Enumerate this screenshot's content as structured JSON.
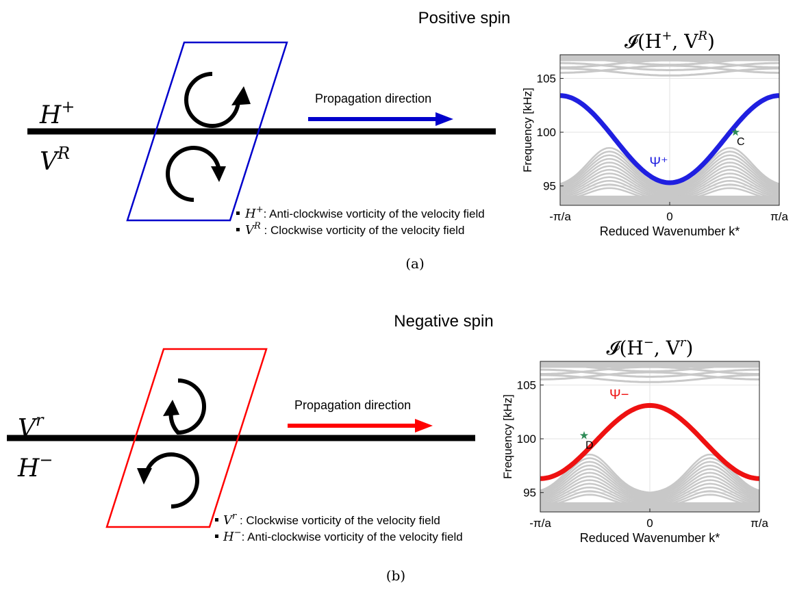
{
  "panel_a": {
    "title": "Positive spin",
    "label": "(a)",
    "top_line_label": {
      "base": "H",
      "sup": "+"
    },
    "bottom_line_label": {
      "base": "V",
      "sup": "R"
    },
    "arrow_label": "Propagation direction",
    "arrow_color": "#0000cc",
    "box_color": "#0000cc",
    "legend": [
      {
        "symbol": {
          "base": "H",
          "sup": "+"
        },
        "text": ": Anti-clockwise vorticity of the velocity field"
      },
      {
        "symbol": {
          "base": "V",
          "sup": "R"
        },
        "text": " : Clockwise vorticity of the velocity field"
      }
    ],
    "chart_data": {
      "type": "line",
      "title": {
        "func": "𝓘(H",
        "sup1": "+",
        "mid": ", V",
        "sup2": "R",
        "end": ")"
      },
      "xlabel": "Reduced Wavenumber k*",
      "ylabel": "Frequency [kHz]",
      "xticks": [
        "-π/a",
        "0",
        "π/a"
      ],
      "yticks": [
        95,
        100,
        105
      ],
      "ylim": [
        93.2,
        107.2
      ],
      "xlim": [
        -1,
        1
      ],
      "series": [
        {
          "name": "Ψ⁺",
          "color": "#1f1fe0",
          "min": 95.3,
          "max": 103.4,
          "shape": "valley"
        }
      ],
      "marker": {
        "label": "C",
        "x": 0.6,
        "y": 100.0,
        "color": "#2e8b57"
      },
      "bulk_color": "#c8c8c8"
    }
  },
  "panel_b": {
    "title": "Negative spin",
    "label": "(b)",
    "top_line_label": {
      "base": "V",
      "sup": "r"
    },
    "bottom_line_label": {
      "base": "H",
      "sup": "−"
    },
    "arrow_label": "Propagation direction",
    "arrow_color": "#ff0000",
    "box_color": "#ff0000",
    "legend": [
      {
        "symbol": {
          "base": "V",
          "sup": "r"
        },
        "text": " : Clockwise vorticity of the velocity field"
      },
      {
        "symbol": {
          "base": "H",
          "sup": "−"
        },
        "text": ": Anti-clockwise vorticity of the velocity field"
      }
    ],
    "chart_data": {
      "type": "line",
      "title": {
        "func": "𝓘(H",
        "sup1": "−",
        "mid": ", V",
        "sup2": "r",
        "end": ")"
      },
      "xlabel": "Reduced Wavenumber k*",
      "ylabel": "Frequency [kHz]",
      "xticks": [
        "-π/a",
        "0",
        "π/a"
      ],
      "yticks": [
        95,
        100,
        105
      ],
      "ylim": [
        93.2,
        107.2
      ],
      "xlim": [
        -1,
        1
      ],
      "series": [
        {
          "name": "Ψ−",
          "color": "#ee1111",
          "min": 96.3,
          "max": 103.1,
          "shape": "hill"
        }
      ],
      "marker": {
        "label": "D",
        "x": -0.6,
        "y": 100.3,
        "color": "#2e8b57"
      },
      "bulk_color": "#c8c8c8"
    }
  }
}
